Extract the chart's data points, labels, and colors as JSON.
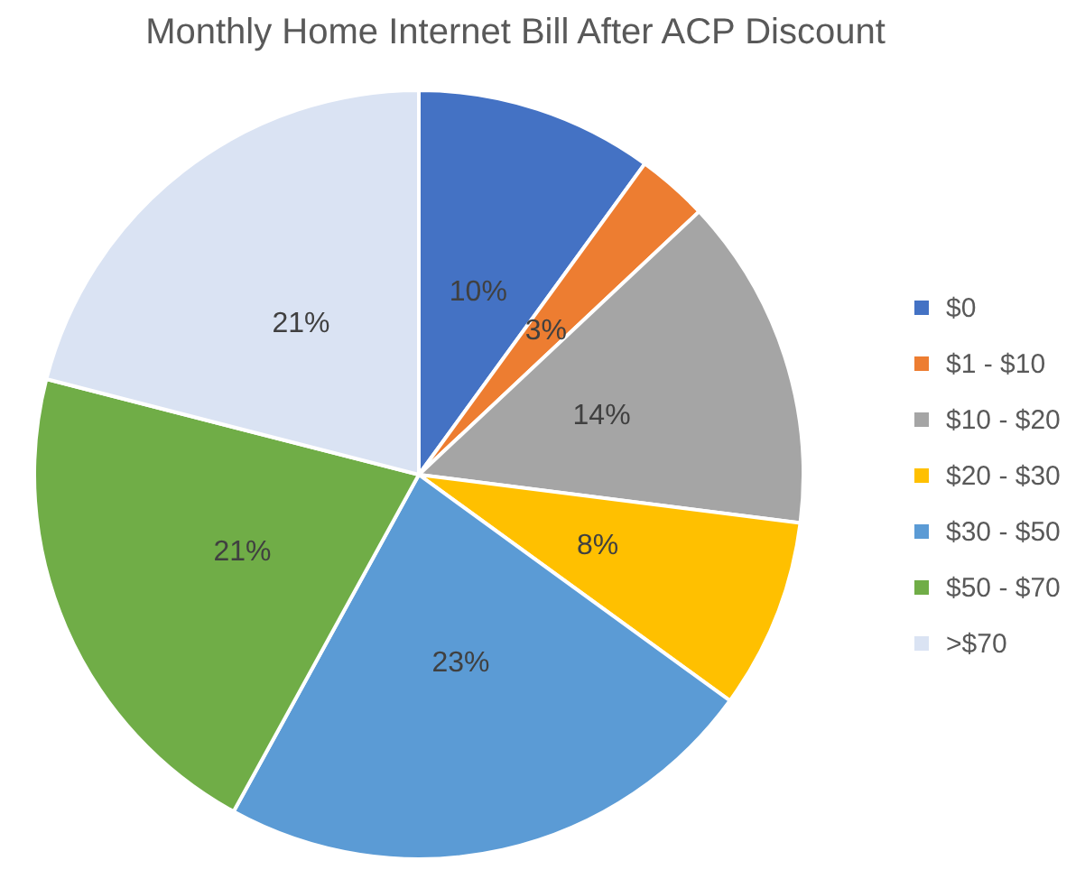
{
  "chart_data": {
    "type": "pie",
    "title": "Monthly Home Internet Bill After ACP Discount",
    "categories": [
      "$0",
      "$1 - $10",
      "$10 - $20",
      "$20 - $30",
      "$30 - $50",
      "$50 - $70",
      ">$70"
    ],
    "values": [
      10,
      3,
      14,
      8,
      23,
      21,
      21
    ],
    "colors": [
      "#4472c4",
      "#ed7d31",
      "#a5a5a5",
      "#ffc000",
      "#5b9bd5",
      "#70ad47",
      "#dae3f3"
    ],
    "value_labels": [
      "10%",
      "3%",
      "14%",
      "8%",
      "23%",
      "21%",
      "21%"
    ],
    "legend": "right"
  }
}
